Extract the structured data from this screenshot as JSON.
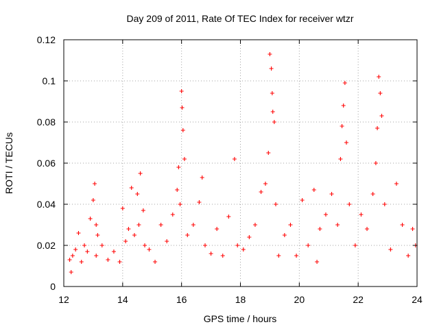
{
  "chart_data": {
    "type": "scatter",
    "title": "Day 209 of 2011, Rate Of TEC Index for receiver wtzr",
    "xlabel": "GPS time / hours",
    "ylabel": "ROTI / TECUs",
    "xlim": [
      12,
      24
    ],
    "ylim": [
      0,
      0.12
    ],
    "xticks": [
      12,
      14,
      16,
      18,
      20,
      22,
      24
    ],
    "yticks": [
      0,
      0.02,
      0.04,
      0.06,
      0.08,
      0.1,
      0.12
    ],
    "xtick_labels": [
      "12",
      "14",
      "16",
      "18",
      "20",
      "22",
      "24"
    ],
    "ytick_labels": [
      "0",
      "0.02",
      "0.04",
      "0.06",
      "0.08",
      "0.1",
      "0.12"
    ],
    "grid": true,
    "marker": "plus",
    "color": "#ff0000",
    "series": [
      {
        "name": "ROTI",
        "x": [
          12.2,
          12.25,
          12.3,
          12.4,
          12.5,
          12.6,
          12.7,
          12.8,
          12.9,
          13.0,
          13.05,
          13.1,
          13.1,
          13.15,
          13.3,
          13.5,
          13.7,
          13.9,
          14.0,
          14.1,
          14.2,
          14.3,
          14.4,
          14.5,
          14.55,
          14.6,
          14.7,
          14.75,
          14.9,
          15.1,
          15.3,
          15.5,
          15.7,
          15.85,
          15.9,
          15.95,
          16.0,
          16.02,
          16.05,
          16.1,
          16.2,
          16.4,
          16.6,
          16.7,
          16.8,
          17.0,
          17.2,
          17.4,
          17.6,
          17.8,
          17.9,
          18.1,
          18.3,
          18.5,
          18.7,
          18.85,
          18.95,
          19.0,
          19.05,
          19.08,
          19.1,
          19.15,
          19.2,
          19.3,
          19.5,
          19.7,
          19.9,
          20.1,
          20.3,
          20.5,
          20.6,
          20.7,
          20.9,
          21.1,
          21.3,
          21.4,
          21.45,
          21.5,
          21.55,
          21.6,
          21.7,
          21.9,
          22.1,
          22.3,
          22.5,
          22.6,
          22.65,
          22.7,
          22.75,
          22.8,
          22.9,
          23.1,
          23.3,
          23.5,
          23.7,
          23.85,
          23.95
        ],
        "y": [
          0.013,
          0.007,
          0.015,
          0.018,
          0.026,
          0.012,
          0.02,
          0.017,
          0.033,
          0.042,
          0.05,
          0.015,
          0.03,
          0.025,
          0.02,
          0.013,
          0.017,
          0.012,
          0.038,
          0.022,
          0.028,
          0.048,
          0.025,
          0.045,
          0.03,
          0.055,
          0.037,
          0.02,
          0.018,
          0.012,
          0.03,
          0.022,
          0.035,
          0.047,
          0.058,
          0.04,
          0.095,
          0.087,
          0.076,
          0.062,
          0.025,
          0.03,
          0.041,
          0.053,
          0.02,
          0.016,
          0.028,
          0.015,
          0.034,
          0.062,
          0.02,
          0.018,
          0.024,
          0.03,
          0.046,
          0.05,
          0.065,
          0.113,
          0.106,
          0.094,
          0.085,
          0.08,
          0.04,
          0.015,
          0.025,
          0.03,
          0.015,
          0.042,
          0.02,
          0.047,
          0.012,
          0.028,
          0.035,
          0.045,
          0.03,
          0.062,
          0.078,
          0.088,
          0.099,
          0.07,
          0.04,
          0.02,
          0.035,
          0.028,
          0.045,
          0.06,
          0.077,
          0.102,
          0.094,
          0.083,
          0.04,
          0.018,
          0.05,
          0.03,
          0.015,
          0.028,
          0.02
        ]
      }
    ]
  }
}
